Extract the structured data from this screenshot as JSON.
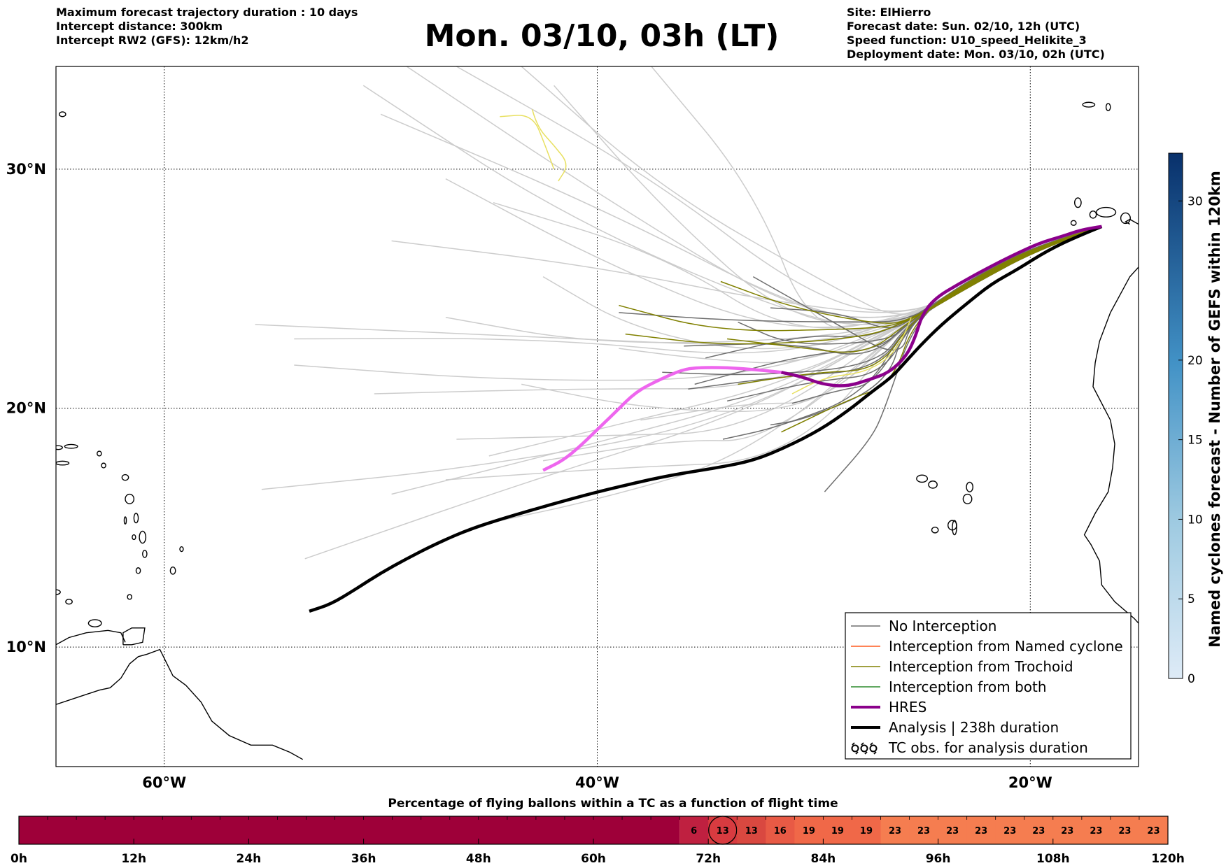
{
  "header": {
    "left": [
      "Maximum forecast trajectory duration : 10 days",
      "Intercept distance: 300km",
      "Intercept RW2 (GFS):  12km/h2"
    ],
    "title": "Mon. 03/10, 03h (LT)",
    "right": [
      "Site: ElHierro",
      "Forecast date: Sun. 02/10, 12h (UTC)",
      "Speed function: U10_speed_Helikite_3",
      "Deployment date: Mon. 03/10, 02h (UTC)"
    ]
  },
  "map": {
    "lon_range": [
      -65,
      -15
    ],
    "lat_range": [
      5,
      34.3
    ],
    "lon_ticks": [
      {
        "value": -60,
        "label": "60°W"
      },
      {
        "value": -40,
        "label": "40°W"
      },
      {
        "value": -20,
        "label": "20°W"
      }
    ],
    "lat_ticks": [
      {
        "value": 30,
        "label": "30°N"
      },
      {
        "value": 20,
        "label": "20°N"
      },
      {
        "value": 10,
        "label": "10°N"
      }
    ],
    "grid": true,
    "colors": {
      "no_interception": "#6e6e6e",
      "named_cyclone": "#ff5a1f",
      "trochoid": "#808000",
      "both": "#2e8b2e",
      "hres": "#8b008b",
      "analysis": "#000000",
      "ensemble_light": "#cccccc",
      "hres_pink": "#ee66ee",
      "yellow_track": "#e8e060"
    },
    "tracks": {
      "hres": [
        [
          -16.7,
          27.6
        ],
        [
          -17.5,
          27.5
        ],
        [
          -18.5,
          27.2
        ],
        [
          -19.6,
          26.9
        ],
        [
          -20.8,
          26.4
        ],
        [
          -22.1,
          25.8
        ],
        [
          -23.3,
          25.2
        ],
        [
          -24.4,
          24.6
        ],
        [
          -25.0,
          23.9
        ],
        [
          -25.3,
          23.0
        ],
        [
          -25.7,
          22.2
        ],
        [
          -26.5,
          21.5
        ],
        [
          -27.4,
          21.2
        ],
        [
          -28.5,
          20.9
        ],
        [
          -29.6,
          21.0
        ],
        [
          -30.5,
          21.3
        ],
        [
          -31.5,
          21.5
        ]
      ],
      "hres_pink": [
        [
          -31.5,
          21.5
        ],
        [
          -32.5,
          21.6
        ],
        [
          -34.0,
          21.7
        ],
        [
          -35.4,
          21.7
        ],
        [
          -36.1,
          21.6
        ],
        [
          -37.1,
          21.2
        ],
        [
          -38.2,
          20.7
        ],
        [
          -39.2,
          19.8
        ],
        [
          -40.0,
          19.1
        ],
        [
          -40.8,
          18.4
        ],
        [
          -41.6,
          17.8
        ],
        [
          -42.5,
          17.4
        ]
      ],
      "analysis": [
        [
          -16.7,
          27.6
        ],
        [
          -17.8,
          27.2
        ],
        [
          -19.2,
          26.6
        ],
        [
          -20.6,
          25.8
        ],
        [
          -21.8,
          25.2
        ],
        [
          -22.9,
          24.4
        ],
        [
          -24.1,
          23.5
        ],
        [
          -25.1,
          22.6
        ],
        [
          -25.8,
          21.9
        ],
        [
          -26.4,
          21.3
        ],
        [
          -27.3,
          20.7
        ],
        [
          -28.4,
          19.9
        ],
        [
          -29.7,
          19.1
        ],
        [
          -31.2,
          18.4
        ],
        [
          -32.8,
          17.8
        ],
        [
          -34.5,
          17.5
        ],
        [
          -36.6,
          17.2
        ],
        [
          -38.6,
          16.8
        ],
        [
          -40.4,
          16.4
        ],
        [
          -42.4,
          15.9
        ],
        [
          -44.3,
          15.4
        ],
        [
          -46.0,
          14.9
        ],
        [
          -47.5,
          14.3
        ],
        [
          -48.8,
          13.7
        ],
        [
          -50.0,
          13.1
        ],
        [
          -51.2,
          12.4
        ],
        [
          -52.3,
          11.8
        ],
        [
          -53.3,
          11.5
        ]
      ]
    },
    "legend": [
      {
        "label": "No Interception",
        "style": "no_interception"
      },
      {
        "label": "Interception from Named cyclone",
        "style": "named_cyclone"
      },
      {
        "label": "Interception from Trochoid",
        "style": "trochoid"
      },
      {
        "label": "Interception from both",
        "style": "both"
      },
      {
        "label": "HRES",
        "style": "hres"
      },
      {
        "label": "Analysis | 238h duration",
        "style": "analysis"
      },
      {
        "label": "TC obs. for analysis duration",
        "style": "tc_obs"
      }
    ],
    "colorbar": {
      "label": "Named cyclones forecast - Number of GEFS within 120km",
      "min": 0,
      "max": 33,
      "ticks": [
        0,
        5,
        10,
        15,
        20,
        30
      ]
    }
  },
  "bar": {
    "title": "Percentage of flying ballons within a TC as a function of flight time",
    "tick_labels": [
      "0h",
      "12h",
      "24h",
      "36h",
      "48h",
      "60h",
      "72h",
      "84h",
      "96h",
      "108h",
      "120h"
    ],
    "hours_total": 120,
    "base_color": "#9e0039",
    "empty_until_h": 69,
    "cells": [
      {
        "v": "6",
        "color": "#bf2040"
      },
      {
        "v": "13",
        "color": "#d83b40",
        "circled": true
      },
      {
        "v": "13",
        "color": "#d94840"
      },
      {
        "v": "16",
        "color": "#e85a45"
      },
      {
        "v": "19",
        "color": "#f06848"
      },
      {
        "v": "19",
        "color": "#f06848"
      },
      {
        "v": "19",
        "color": "#f06848"
      },
      {
        "v": "23",
        "color": "#f57d50"
      },
      {
        "v": "23",
        "color": "#f57d50"
      },
      {
        "v": "23",
        "color": "#f57d50"
      },
      {
        "v": "23",
        "color": "#f57d50"
      },
      {
        "v": "23",
        "color": "#f57d50"
      },
      {
        "v": "23",
        "color": "#f57d50"
      },
      {
        "v": "23",
        "color": "#f57d50"
      },
      {
        "v": "23",
        "color": "#f57d50"
      },
      {
        "v": "23",
        "color": "#f57d50"
      },
      {
        "v": "23",
        "color": "#f57d50"
      }
    ]
  }
}
